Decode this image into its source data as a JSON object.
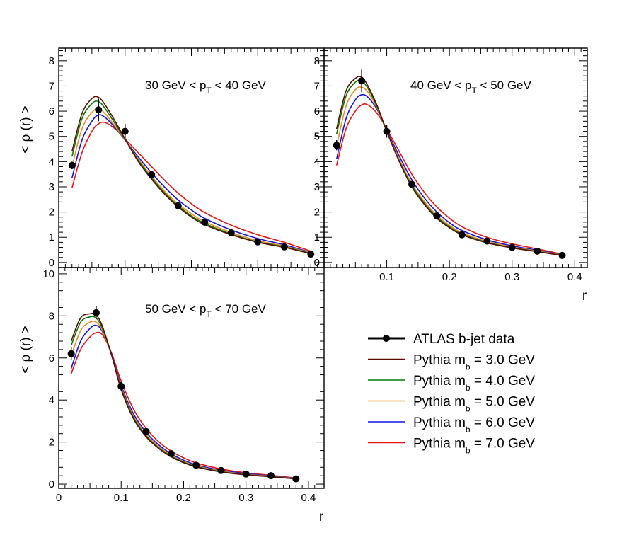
{
  "chart_data": {
    "type": "line",
    "xlabel": "r",
    "ylabel": "< ρ (r) >",
    "x": [
      0.02,
      0.06,
      0.1,
      0.14,
      0.18,
      0.22,
      0.26,
      0.3,
      0.34,
      0.38
    ],
    "colors": {
      "data": "#000000",
      "mb3": "#5a0f00",
      "mb4": "#0a7a0a",
      "mb5": "#f08c1e",
      "mb6": "#1414e6",
      "mb7": "#e61414"
    },
    "legend": {
      "position": "bottom-right",
      "entries": [
        {
          "key": "data",
          "label": "ATLAS b-jet data"
        },
        {
          "key": "mb3",
          "label": "Pythia m",
          "sub": "b",
          "suffix": " = 3.0 GeV"
        },
        {
          "key": "mb4",
          "label": "Pythia m",
          "sub": "b",
          "suffix": " = 4.0 GeV"
        },
        {
          "key": "mb5",
          "label": "Pythia m",
          "sub": "b",
          "suffix": " = 5.0 GeV"
        },
        {
          "key": "mb6",
          "label": "Pythia m",
          "sub": "b",
          "suffix": " = 6.0 GeV"
        },
        {
          "key": "mb7",
          "label": "Pythia m",
          "sub": "b",
          "suffix": " = 7.0 GeV"
        }
      ]
    },
    "panels": [
      {
        "id": "pt30",
        "title_pre": "30 GeV < p",
        "title_sub": "T",
        "title_post": " < 40 GeV",
        "xlim": [
          0,
          0.4
        ],
        "ylim": [
          -0.2,
          8.5
        ],
        "yticks": [
          0,
          1,
          2,
          3,
          4,
          5,
          6,
          7,
          8
        ],
        "xticks": [],
        "show_ylabel": true,
        "show_xlabel": false,
        "data": {
          "y": [
            3.85,
            6.05,
            5.2,
            3.48,
            2.25,
            1.6,
            1.18,
            0.82,
            0.62,
            0.33
          ],
          "err": [
            0.15,
            0.45,
            0.3,
            0.12,
            0.1,
            0.08,
            0.06,
            0.05,
            0.04,
            0.03
          ]
        },
        "models": {
          "mb3": {
            "x": [
              0.02,
              0.035,
              0.05,
              0.06,
              0.07,
              0.085,
              0.1,
              0.12,
              0.14,
              0.16,
              0.18,
              0.2,
              0.22,
              0.26,
              0.3,
              0.34,
              0.38
            ],
            "y": [
              4.4,
              5.9,
              6.5,
              6.55,
              6.25,
              5.6,
              4.9,
              4.0,
              3.3,
              2.7,
              2.2,
              1.8,
              1.5,
              1.1,
              0.8,
              0.6,
              0.35
            ]
          },
          "mb4": {
            "x": [
              0.02,
              0.035,
              0.05,
              0.06,
              0.07,
              0.085,
              0.1,
              0.12,
              0.14,
              0.16,
              0.18,
              0.2,
              0.22,
              0.26,
              0.3,
              0.34,
              0.38
            ],
            "y": [
              4.2,
              5.7,
              6.3,
              6.38,
              6.1,
              5.5,
              4.88,
              4.05,
              3.35,
              2.75,
              2.25,
              1.85,
              1.55,
              1.13,
              0.82,
              0.62,
              0.36
            ]
          },
          "mb5": {
            "x": [
              0.02,
              0.035,
              0.05,
              0.06,
              0.07,
              0.085,
              0.1,
              0.12,
              0.14,
              0.16,
              0.18,
              0.2,
              0.22,
              0.26,
              0.3,
              0.34,
              0.38
            ],
            "y": [
              3.8,
              5.3,
              5.95,
              6.1,
              5.9,
              5.4,
              4.86,
              4.1,
              3.42,
              2.82,
              2.32,
              1.93,
              1.62,
              1.19,
              0.87,
              0.65,
              0.38
            ]
          },
          "mb6": {
            "x": [
              0.02,
              0.035,
              0.05,
              0.06,
              0.07,
              0.085,
              0.1,
              0.12,
              0.14,
              0.16,
              0.18,
              0.2,
              0.22,
              0.26,
              0.3,
              0.34,
              0.38
            ],
            "y": [
              3.35,
              4.85,
              5.6,
              5.85,
              5.75,
              5.35,
              4.85,
              4.18,
              3.55,
              2.98,
              2.48,
              2.08,
              1.75,
              1.29,
              0.95,
              0.7,
              0.4
            ]
          },
          "mb7": {
            "x": [
              0.02,
              0.035,
              0.05,
              0.06,
              0.07,
              0.085,
              0.1,
              0.12,
              0.14,
              0.16,
              0.18,
              0.2,
              0.22,
              0.26,
              0.3,
              0.34,
              0.38
            ],
            "y": [
              2.95,
              4.35,
              5.2,
              5.5,
              5.55,
              5.3,
              4.9,
              4.35,
              3.8,
              3.25,
              2.75,
              2.33,
              1.98,
              1.48,
              1.1,
              0.8,
              0.45
            ]
          }
        }
      },
      {
        "id": "pt40",
        "title_pre": "40 GeV < p",
        "title_sub": "T",
        "title_post": " < 50 GeV",
        "xlim": [
          0,
          0.42
        ],
        "ylim": [
          -0.2,
          8.5
        ],
        "yticks": [
          0,
          1,
          2,
          3,
          4,
          5,
          6,
          7,
          8
        ],
        "xticks": [
          0.1,
          0.2,
          0.3,
          0.4
        ],
        "show_ylabel": false,
        "show_xlabel": true,
        "data": {
          "y": [
            4.65,
            7.2,
            5.2,
            3.1,
            1.85,
            1.1,
            0.85,
            0.6,
            0.45,
            0.28
          ],
          "err": [
            0.2,
            0.45,
            0.25,
            0.12,
            0.08,
            0.06,
            0.05,
            0.04,
            0.03,
            0.03
          ]
        },
        "models": {
          "mb3": {
            "x": [
              0.02,
              0.035,
              0.05,
              0.06,
              0.07,
              0.085,
              0.1,
              0.12,
              0.14,
              0.16,
              0.18,
              0.2,
              0.22,
              0.26,
              0.3,
              0.34,
              0.38
            ],
            "y": [
              5.3,
              6.8,
              7.3,
              7.35,
              7.0,
              6.2,
              5.2,
              4.0,
              3.0,
              2.3,
              1.75,
              1.38,
              1.1,
              0.78,
              0.58,
              0.43,
              0.28
            ]
          },
          "mb4": {
            "x": [
              0.02,
              0.035,
              0.05,
              0.06,
              0.07,
              0.085,
              0.1,
              0.12,
              0.14,
              0.16,
              0.18,
              0.2,
              0.22,
              0.26,
              0.3,
              0.34,
              0.38
            ],
            "y": [
              5.1,
              6.6,
              7.15,
              7.2,
              6.9,
              6.15,
              5.2,
              4.03,
              3.05,
              2.35,
              1.8,
              1.42,
              1.13,
              0.8,
              0.59,
              0.44,
              0.28
            ]
          },
          "mb5": {
            "x": [
              0.02,
              0.035,
              0.05,
              0.06,
              0.07,
              0.085,
              0.1,
              0.12,
              0.14,
              0.16,
              0.18,
              0.2,
              0.22,
              0.26,
              0.3,
              0.34,
              0.38
            ],
            "y": [
              4.6,
              6.2,
              6.85,
              6.95,
              6.75,
              6.1,
              5.2,
              4.1,
              3.12,
              2.42,
              1.87,
              1.48,
              1.18,
              0.84,
              0.62,
              0.46,
              0.29
            ]
          },
          "mb6": {
            "x": [
              0.02,
              0.035,
              0.05,
              0.06,
              0.07,
              0.085,
              0.1,
              0.12,
              0.14,
              0.16,
              0.18,
              0.2,
              0.22,
              0.26,
              0.3,
              0.34,
              0.38
            ],
            "y": [
              4.1,
              5.7,
              6.45,
              6.65,
              6.55,
              6.05,
              5.25,
              4.22,
              3.28,
              2.56,
              2.0,
              1.58,
              1.27,
              0.9,
              0.66,
              0.49,
              0.3
            ]
          },
          "mb7": {
            "x": [
              0.02,
              0.035,
              0.05,
              0.06,
              0.07,
              0.085,
              0.1,
              0.12,
              0.14,
              0.16,
              0.18,
              0.2,
              0.22,
              0.26,
              0.3,
              0.34,
              0.38
            ],
            "y": [
              3.85,
              5.3,
              6.0,
              6.25,
              6.25,
              5.9,
              5.3,
              4.4,
              3.5,
              2.78,
              2.2,
              1.76,
              1.42,
              1.0,
              0.74,
              0.54,
              0.33
            ]
          }
        }
      },
      {
        "id": "pt50",
        "title_pre": "50 GeV < p",
        "title_sub": "T",
        "title_post": " < 70 GeV",
        "xlim": [
          0,
          0.425
        ],
        "ylim": [
          -0.2,
          10.3
        ],
        "yticks": [
          0,
          2,
          4,
          6,
          8,
          10
        ],
        "xticks": [
          0,
          0.1,
          0.2,
          0.3,
          0.4
        ],
        "show_ylabel": true,
        "show_xlabel": true,
        "data": {
          "y": [
            6.2,
            8.15,
            4.65,
            2.5,
            1.45,
            0.9,
            0.65,
            0.48,
            0.4,
            0.25
          ],
          "err": [
            0.3,
            0.3,
            0.2,
            0.12,
            0.08,
            0.05,
            0.04,
            0.04,
            0.03,
            0.03
          ]
        },
        "models": {
          "mb3": {
            "x": [
              0.02,
              0.035,
              0.05,
              0.06,
              0.07,
              0.085,
              0.1,
              0.12,
              0.14,
              0.16,
              0.18,
              0.2,
              0.22,
              0.26,
              0.3,
              0.34,
              0.38
            ],
            "y": [
              6.8,
              7.9,
              8.1,
              8.05,
              7.5,
              6.1,
              4.5,
              3.1,
              2.25,
              1.7,
              1.3,
              1.02,
              0.82,
              0.58,
              0.44,
              0.35,
              0.25
            ]
          },
          "mb4": {
            "x": [
              0.02,
              0.035,
              0.05,
              0.06,
              0.07,
              0.085,
              0.1,
              0.12,
              0.14,
              0.16,
              0.18,
              0.2,
              0.22,
              0.26,
              0.3,
              0.34,
              0.38
            ],
            "y": [
              6.6,
              7.7,
              7.95,
              7.9,
              7.4,
              6.1,
              4.55,
              3.15,
              2.3,
              1.73,
              1.33,
              1.05,
              0.84,
              0.6,
              0.45,
              0.36,
              0.25
            ]
          },
          "mb5": {
            "x": [
              0.02,
              0.035,
              0.05,
              0.06,
              0.07,
              0.085,
              0.1,
              0.12,
              0.14,
              0.16,
              0.18,
              0.2,
              0.22,
              0.26,
              0.3,
              0.34,
              0.38
            ],
            "y": [
              6.1,
              7.3,
              7.7,
              7.7,
              7.3,
              6.1,
              4.6,
              3.22,
              2.36,
              1.78,
              1.37,
              1.08,
              0.87,
              0.62,
              0.47,
              0.37,
              0.26
            ]
          },
          "mb6": {
            "x": [
              0.02,
              0.035,
              0.05,
              0.06,
              0.07,
              0.085,
              0.1,
              0.12,
              0.14,
              0.16,
              0.18,
              0.2,
              0.22,
              0.26,
              0.3,
              0.34,
              0.38
            ],
            "y": [
              5.5,
              6.8,
              7.4,
              7.55,
              7.25,
              6.15,
              4.7,
              3.33,
              2.46,
              1.87,
              1.44,
              1.14,
              0.92,
              0.66,
              0.5,
              0.39,
              0.27
            ]
          },
          "mb7": {
            "x": [
              0.02,
              0.035,
              0.05,
              0.06,
              0.07,
              0.085,
              0.1,
              0.12,
              0.14,
              0.16,
              0.18,
              0.2,
              0.22,
              0.26,
              0.3,
              0.34,
              0.38
            ],
            "y": [
              5.25,
              6.4,
              7.0,
              7.2,
              7.1,
              6.2,
              4.9,
              3.55,
              2.65,
              2.02,
              1.57,
              1.25,
              1.01,
              0.72,
              0.54,
              0.42,
              0.29
            ]
          }
        }
      }
    ]
  }
}
